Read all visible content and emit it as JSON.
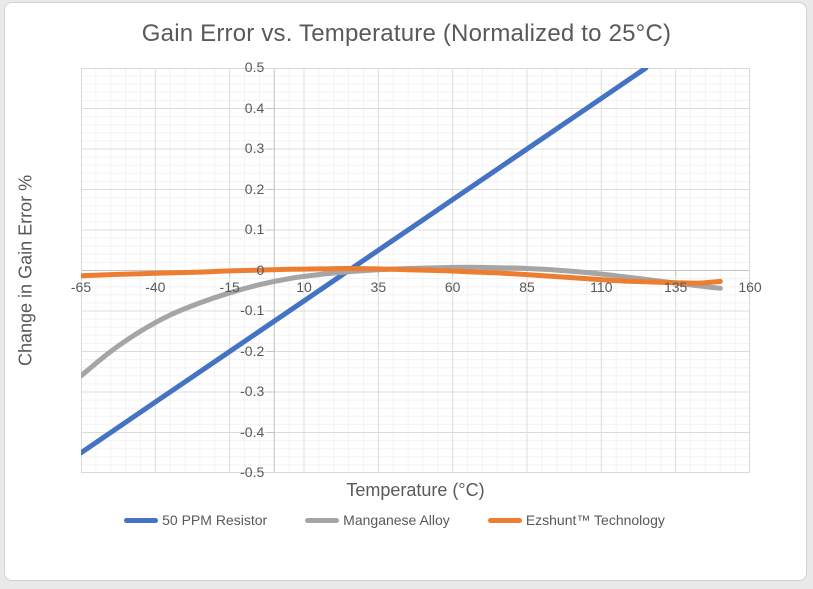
{
  "chart_data": {
    "type": "line",
    "title": "Gain Error vs. Temperature (Normalized to 25°C)",
    "xlabel": "Temperature (°C)",
    "ylabel": "Change in Gain Error %",
    "xlim": [
      -65,
      160
    ],
    "ylim": [
      -0.5,
      0.5
    ],
    "x_ticks": [
      -65,
      -40,
      -15,
      10,
      35,
      60,
      85,
      110,
      135,
      160
    ],
    "y_ticks": [
      0.5,
      0.4,
      0.3,
      0.2,
      0.1,
      0,
      -0.1,
      -0.2,
      -0.3,
      -0.4,
      -0.5
    ],
    "x_minor_step": 5,
    "y_minor_step": 0.02,
    "grid": "major and minor gridlines on",
    "legend_position": "bottom",
    "axis_layout": "y-axis drawn at x=0, x-axis drawn at y=0, tick marks outside",
    "colors": {
      "grid_major": "#dcdcdc",
      "grid_minor": "#f3f3f3",
      "axis": "#c3c3c3",
      "plot_border": "#d9d9d9",
      "text": "#595959"
    },
    "series": [
      {
        "name": "50 PPM Resistor",
        "color": "#4472C4",
        "stroke_width": 5,
        "points": [
          [
            -65,
            -0.45
          ],
          [
            -40,
            -0.325
          ],
          [
            -15,
            -0.2
          ],
          [
            10,
            -0.075
          ],
          [
            25,
            0
          ],
          [
            35,
            0.05
          ],
          [
            60,
            0.175
          ],
          [
            85,
            0.3
          ],
          [
            110,
            0.425
          ],
          [
            125,
            0.5
          ]
        ]
      },
      {
        "name": "Manganese Alloy",
        "color": "#A5A5A5",
        "stroke_width": 5,
        "points": [
          [
            -65,
            -0.26
          ],
          [
            -55,
            -0.2
          ],
          [
            -45,
            -0.15
          ],
          [
            -35,
            -0.11
          ],
          [
            -25,
            -0.08
          ],
          [
            -15,
            -0.055
          ],
          [
            -5,
            -0.035
          ],
          [
            5,
            -0.02
          ],
          [
            15,
            -0.01
          ],
          [
            25,
            -0.003
          ],
          [
            35,
            0.002
          ],
          [
            45,
            0.005
          ],
          [
            55,
            0.007
          ],
          [
            65,
            0.008
          ],
          [
            75,
            0.007
          ],
          [
            85,
            0.005
          ],
          [
            95,
            0.001
          ],
          [
            105,
            -0.005
          ],
          [
            115,
            -0.013
          ],
          [
            125,
            -0.022
          ],
          [
            135,
            -0.031
          ],
          [
            145,
            -0.04
          ],
          [
            150,
            -0.044
          ]
        ]
      },
      {
        "name": "Ezshunt™ Technology",
        "color": "#ED7D31",
        "stroke_width": 5,
        "points": [
          [
            -65,
            -0.013
          ],
          [
            -55,
            -0.01
          ],
          [
            -45,
            -0.008
          ],
          [
            -35,
            -0.006
          ],
          [
            -25,
            -0.004
          ],
          [
            -15,
            -0.001
          ],
          [
            -5,
            0.001
          ],
          [
            5,
            0.003
          ],
          [
            15,
            0.004
          ],
          [
            25,
            0.005
          ],
          [
            35,
            0.004
          ],
          [
            45,
            0.002
          ],
          [
            55,
            0
          ],
          [
            65,
            -0.003
          ],
          [
            75,
            -0.006
          ],
          [
            85,
            -0.01
          ],
          [
            95,
            -0.015
          ],
          [
            105,
            -0.02
          ],
          [
            115,
            -0.025
          ],
          [
            125,
            -0.028
          ],
          [
            135,
            -0.03
          ],
          [
            143,
            -0.031
          ],
          [
            150,
            -0.027
          ]
        ]
      }
    ]
  },
  "legend": {
    "items": [
      {
        "label": "50 PPM Resistor",
        "color": "#4472C4"
      },
      {
        "label": "Manganese Alloy",
        "color": "#A5A5A5"
      },
      {
        "label": "Ezshunt™ Technology",
        "color": "#ED7D31"
      }
    ]
  }
}
